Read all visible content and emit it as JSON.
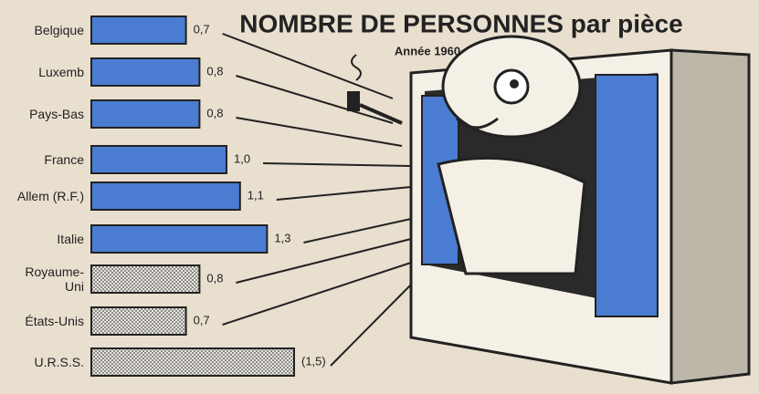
{
  "chart_data": {
    "type": "bar",
    "orientation": "horizontal",
    "title": "NOMBRE DE PERSONNES par pièce",
    "subtitle": "Année 1960",
    "categories": [
      "Belgique",
      "Luxemb",
      "Pays-Bas",
      "France",
      "Allem (R.F.)",
      "Italie",
      "Royaume-Uni",
      "États-Unis",
      "U.R.S.S."
    ],
    "values": [
      0.7,
      0.8,
      0.8,
      1.0,
      1.1,
      1.3,
      0.8,
      0.7,
      1.5
    ],
    "value_labels": [
      "0,7",
      "0,8",
      "0,8",
      "1,0",
      "1,1",
      "1,3",
      "0,8",
      "0,7",
      "(1,5)"
    ],
    "colors": [
      "#4a7cd2",
      "#4a7cd2",
      "#4a7cd2",
      "#4a7cd2",
      "#4a7cd2",
      "#4a7cd2",
      "#8c8c8c",
      "#8c8c8c",
      "#8c8c8c"
    ]
  }
}
